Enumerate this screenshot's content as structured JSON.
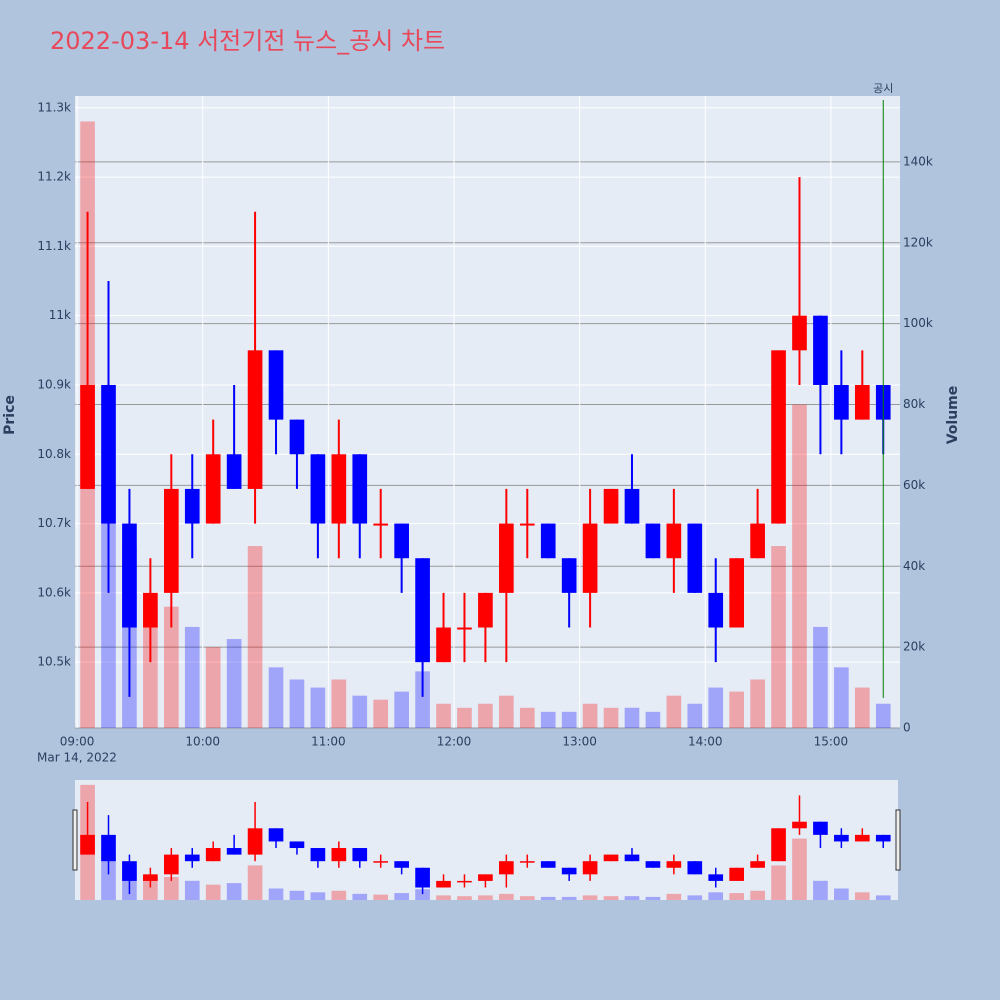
{
  "chart_data": {
    "type": "candlestick",
    "title": "2022-03-14 서전기전 뉴스_공시 차트",
    "yaxis_title": "Price",
    "y2axis_title": "Volume",
    "x_sublabel": "Mar 14, 2022",
    "increasing_color": "#ff0000",
    "decreasing_color": "#0000ff",
    "x": [
      "2022-03-14 09:00",
      "2022-03-14 09:10",
      "2022-03-14 09:20",
      "2022-03-14 09:30",
      "2022-03-14 09:40",
      "2022-03-14 09:50",
      "2022-03-14 10:00",
      "2022-03-14 10:10",
      "2022-03-14 10:20",
      "2022-03-14 10:30",
      "2022-03-14 10:40",
      "2022-03-14 10:50",
      "2022-03-14 11:00",
      "2022-03-14 11:10",
      "2022-03-14 11:20",
      "2022-03-14 11:30",
      "2022-03-14 11:40",
      "2022-03-14 11:50",
      "2022-03-14 12:00",
      "2022-03-14 12:10",
      "2022-03-14 12:20",
      "2022-03-14 12:30",
      "2022-03-14 12:40",
      "2022-03-14 12:50",
      "2022-03-14 13:00",
      "2022-03-14 13:10",
      "2022-03-14 13:20",
      "2022-03-14 13:30",
      "2022-03-14 13:40",
      "2022-03-14 13:50",
      "2022-03-14 14:00",
      "2022-03-14 14:10",
      "2022-03-14 14:20",
      "2022-03-14 14:30",
      "2022-03-14 14:40",
      "2022-03-14 14:50",
      "2022-03-14 15:00",
      "2022-03-14 15:10",
      "2022-03-14 15:20"
    ],
    "open": [
      10750,
      10900,
      10700,
      10550,
      10600,
      10750,
      10700,
      10800,
      10750,
      10950,
      10850,
      10800,
      10700,
      10800,
      10700,
      10700,
      10650,
      10500,
      10550,
      10550,
      10600,
      10700,
      10700,
      10650,
      10600,
      10700,
      10750,
      10700,
      10650,
      10700,
      10600,
      10550,
      10650,
      10700,
      10950,
      11000,
      10900,
      10850,
      10900
    ],
    "high": [
      11150,
      11050,
      10750,
      10650,
      10800,
      10800,
      10850,
      10900,
      11150,
      10950,
      10850,
      10800,
      10850,
      10800,
      10750,
      10700,
      10650,
      10600,
      10600,
      10600,
      10750,
      10750,
      10700,
      10650,
      10750,
      10750,
      10800,
      10700,
      10750,
      10700,
      10650,
      10650,
      10750,
      10950,
      11200,
      11000,
      10950,
      10950,
      10900
    ],
    "low": [
      10750,
      10600,
      10450,
      10500,
      10550,
      10650,
      10700,
      10750,
      10700,
      10800,
      10750,
      10650,
      10650,
      10650,
      10650,
      10600,
      10450,
      10500,
      10500,
      10500,
      10500,
      10650,
      10650,
      10550,
      10550,
      10700,
      10700,
      10650,
      10600,
      10600,
      10500,
      10550,
      10650,
      10700,
      10900,
      10800,
      10800,
      10850,
      10800
    ],
    "close": [
      10900,
      10700,
      10550,
      10600,
      10750,
      10700,
      10800,
      10750,
      10950,
      10850,
      10800,
      10700,
      10800,
      10700,
      10700,
      10650,
      10500,
      10550,
      10550,
      10600,
      10700,
      10700,
      10650,
      10600,
      10700,
      10750,
      10700,
      10650,
      10700,
      10600,
      10550,
      10650,
      10700,
      10950,
      11000,
      10900,
      10850,
      10900,
      10850
    ],
    "volume": [
      150000,
      60000,
      45000,
      30000,
      30000,
      25000,
      20000,
      22000,
      45000,
      15000,
      12000,
      10000,
      12000,
      8000,
      7000,
      9000,
      14000,
      6000,
      5000,
      6000,
      8000,
      5000,
      4000,
      4000,
      6000,
      5000,
      5000,
      4000,
      8000,
      6000,
      10000,
      9000,
      12000,
      45000,
      80000,
      25000,
      15000,
      10000,
      6000
    ],
    "xlim": [
      "2022-03-14 08:59",
      "2022-03-14 15:33"
    ],
    "xticks": [
      {
        "value": "2022-03-14 09:00",
        "label": "09:00"
      },
      {
        "value": "2022-03-14 10:00",
        "label": "10:00"
      },
      {
        "value": "2022-03-14 11:00",
        "label": "11:00"
      },
      {
        "value": "2022-03-14 12:00",
        "label": "12:00"
      },
      {
        "value": "2022-03-14 13:00",
        "label": "13:00"
      },
      {
        "value": "2022-03-14 14:00",
        "label": "14:00"
      },
      {
        "value": "2022-03-14 15:00",
        "label": "15:00"
      }
    ],
    "ylim": [
      10405,
      11317
    ],
    "yticks": [
      {
        "value": 10500,
        "label": "10.5k"
      },
      {
        "value": 10600,
        "label": "10.6k"
      },
      {
        "value": 10700,
        "label": "10.7k"
      },
      {
        "value": 10800,
        "label": "10.8k"
      },
      {
        "value": 10900,
        "label": "10.9k"
      },
      {
        "value": 11000,
        "label": "11k"
      },
      {
        "value": 11100,
        "label": "11.1k"
      },
      {
        "value": 11200,
        "label": "11.2k"
      },
      {
        "value": 11300,
        "label": "11.3k"
      }
    ],
    "y2lim": [
      0,
      156300
    ],
    "y2ticks": [
      0,
      {
        "value": 20000,
        "label": "20k"
      },
      {
        "value": 40000,
        "label": "40k"
      },
      {
        "value": 60000,
        "label": "60k"
      },
      {
        "value": 80000,
        "label": "80k"
      },
      {
        "value": 100000,
        "label": "100k"
      },
      {
        "value": 120000,
        "label": "120k"
      },
      {
        "value": 140000,
        "label": "140k"
      }
    ],
    "annotation": {
      "x": "2022-03-14 15:25",
      "text": "공시"
    }
  }
}
